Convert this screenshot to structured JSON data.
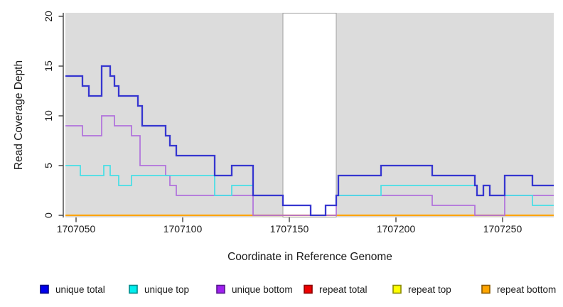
{
  "chart_data": {
    "type": "line",
    "subtype": "step-coverage-plot",
    "title": "",
    "xlabel": "Coordinate in Reference Genome",
    "ylabel": "Read Coverage Depth",
    "xlim": [
      1707045,
      1707274
    ],
    "ylim": [
      0,
      20
    ],
    "xticks": [
      1707050,
      1707100,
      1707150,
      1707200,
      1707250
    ],
    "yticks": [
      0,
      5,
      10,
      15,
      20
    ],
    "grid": "off",
    "plot_bg": "#dcdcdc",
    "masked_region": {
      "start": 1707147,
      "end": 1707172,
      "fill": "#ffffff",
      "edge": "#a0a0a0"
    },
    "series": [
      {
        "name": "repeat total",
        "color": "#ee2222",
        "width": 1.6,
        "points": [
          [
            1707045,
            0
          ]
        ]
      },
      {
        "name": "repeat top",
        "color": "#ffff00",
        "width": 1.6,
        "points": [
          [
            1707045,
            0
          ]
        ]
      },
      {
        "name": "repeat bottom",
        "color": "#ffa500",
        "width": 2.2,
        "points": [
          [
            1707045,
            0
          ]
        ]
      },
      {
        "name": "unique bottom",
        "color": "#b070dc",
        "width": 1.7,
        "points": [
          [
            1707045,
            9
          ],
          [
            1707053,
            8
          ],
          [
            1707062,
            10
          ],
          [
            1707068,
            9
          ],
          [
            1707076,
            8
          ],
          [
            1707080,
            5
          ],
          [
            1707092,
            4
          ],
          [
            1707094,
            3
          ],
          [
            1707097,
            2
          ],
          [
            1707133,
            0
          ],
          [
            1707172,
            2
          ],
          [
            1707217,
            1
          ],
          [
            1707237,
            0
          ],
          [
            1707251,
            2
          ]
        ]
      },
      {
        "name": "unique top",
        "color": "#45dfe6",
        "width": 1.7,
        "points": [
          [
            1707045,
            5
          ],
          [
            1707052,
            4
          ],
          [
            1707063,
            5
          ],
          [
            1707066,
            4
          ],
          [
            1707070,
            3
          ],
          [
            1707076,
            4
          ],
          [
            1707115,
            2
          ],
          [
            1707123,
            3
          ],
          [
            1707133,
            2
          ],
          [
            1707147,
            1
          ],
          [
            1707160,
            0
          ],
          [
            1707167,
            1
          ],
          [
            1707172,
            2
          ],
          [
            1707193,
            3
          ],
          [
            1707238,
            2
          ],
          [
            1707241,
            3
          ],
          [
            1707244,
            2
          ],
          [
            1707264,
            1
          ]
        ]
      },
      {
        "name": "unique total",
        "color": "#3636d0",
        "width": 2.3,
        "points": [
          [
            1707045,
            14
          ],
          [
            1707053,
            13
          ],
          [
            1707056,
            12
          ],
          [
            1707062,
            15
          ],
          [
            1707066,
            14
          ],
          [
            1707068,
            13
          ],
          [
            1707070,
            12
          ],
          [
            1707079,
            11
          ],
          [
            1707081,
            9
          ],
          [
            1707092,
            8
          ],
          [
            1707094,
            7
          ],
          [
            1707097,
            6
          ],
          [
            1707115,
            4
          ],
          [
            1707123,
            5
          ],
          [
            1707133,
            2
          ],
          [
            1707147,
            1
          ],
          [
            1707160,
            0
          ],
          [
            1707167,
            1
          ],
          [
            1707172,
            2
          ],
          [
            1707173,
            4
          ],
          [
            1707193,
            5
          ],
          [
            1707217,
            4
          ],
          [
            1707237,
            3
          ],
          [
            1707238,
            2
          ],
          [
            1707241,
            3
          ],
          [
            1707244,
            2
          ],
          [
            1707251,
            4
          ],
          [
            1707264,
            3
          ]
        ]
      }
    ],
    "legend": [
      {
        "label": "unique total",
        "fill": "#0000ee",
        "border": "#000080"
      },
      {
        "label": "unique top",
        "fill": "#00eeee",
        "border": "#008b8b"
      },
      {
        "label": "unique bottom",
        "fill": "#a020f0",
        "border": "#55188b"
      },
      {
        "label": "repeat total",
        "fill": "#ee0000",
        "border": "#8b0000"
      },
      {
        "label": "repeat top",
        "fill": "#ffff00",
        "border": "#8b8b00"
      },
      {
        "label": "repeat bottom",
        "fill": "#ffa500",
        "border": "#8b5a00"
      }
    ],
    "legend_position": "bottom"
  }
}
